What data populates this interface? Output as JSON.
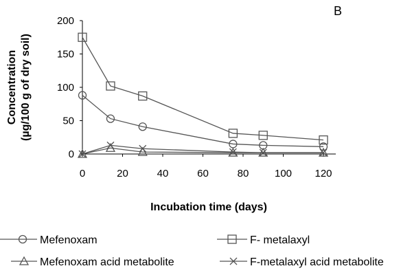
{
  "chart_data": {
    "type": "line",
    "title": "",
    "panel_label": "B",
    "xlabel": "Incubation time (days)",
    "ylabel": [
      "Concentration",
      "(µg/100 g of dry soil)"
    ],
    "xlim": [
      0,
      125
    ],
    "ylim": [
      0,
      200
    ],
    "x_ticks": [
      0,
      20,
      40,
      60,
      80,
      100,
      120
    ],
    "y_ticks": [
      0,
      50,
      100,
      150,
      200
    ],
    "grid": false,
    "legend_position": "bottom",
    "series": [
      {
        "name": "Mefenoxam",
        "marker": "circle",
        "color": "#555555",
        "x": [
          0,
          14,
          30,
          75,
          90,
          120
        ],
        "y": [
          88,
          53,
          41,
          15,
          13,
          11
        ]
      },
      {
        "name": "F- metalaxyl",
        "marker": "square",
        "color": "#555555",
        "x": [
          0,
          14,
          30,
          75,
          90,
          120
        ],
        "y": [
          175,
          102,
          87,
          31,
          28,
          21
        ]
      },
      {
        "name": "Mefenoxam acid metabolite",
        "marker": "triangle",
        "color": "#555555",
        "x": [
          0,
          14,
          30,
          75,
          90,
          120
        ],
        "y": [
          0,
          9,
          3,
          2,
          2,
          2
        ]
      },
      {
        "name": "F-metalaxyl acid metabolite",
        "marker": "x",
        "color": "#555555",
        "x": [
          0,
          14,
          30,
          75,
          90,
          120
        ],
        "y": [
          0,
          13,
          8,
          3,
          2,
          2
        ]
      }
    ]
  }
}
